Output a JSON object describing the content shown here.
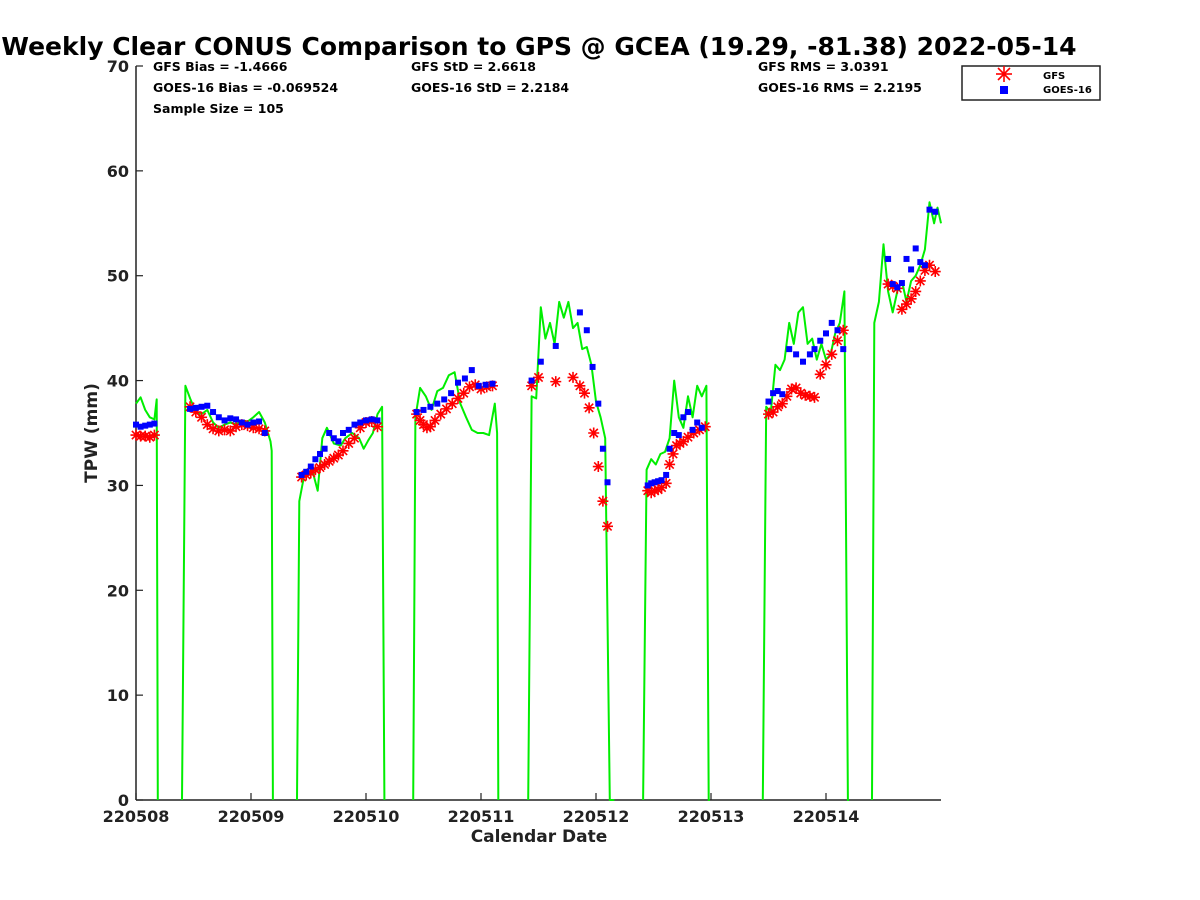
{
  "chart_data": {
    "type": "scatter",
    "title": "Weekly Clear CONUS Comparison to GPS @ GCEA (19.29, -81.38) 2022-05-14",
    "xlabel": "Calendar Date",
    "ylabel": "TPW (mm)",
    "xlim": [
      0,
      7
    ],
    "ylim": [
      0,
      70
    ],
    "yticks": [
      0,
      10,
      20,
      30,
      40,
      50,
      60,
      70
    ],
    "xticks": [
      {
        "x": 0,
        "label": "220508"
      },
      {
        "x": 1,
        "label": "220509"
      },
      {
        "x": 2,
        "label": "220510"
      },
      {
        "x": 3,
        "label": "220511"
      },
      {
        "x": 4,
        "label": "220512"
      },
      {
        "x": 5,
        "label": "220513"
      },
      {
        "x": 6,
        "label": "220514"
      }
    ],
    "grid": false,
    "legend_position": "top-right",
    "stats": {
      "gfs_bias": "GFS Bias = -1.4666",
      "goes_bias": "GOES-16 Bias = -0.069524",
      "sample_size": "Sample Size = 105",
      "gfs_std": "GFS StD = 2.6618",
      "goes_std": "GOES-16 StD = 2.2184",
      "gfs_rms": "GFS RMS = 3.0391",
      "goes_rms": "GOES-16 RMS = 2.2195"
    },
    "series": [
      {
        "name": "GFS",
        "marker": "asterisk",
        "color": "#ff0000",
        "x": [
          0.0,
          0.04,
          0.08,
          0.12,
          0.16,
          0.47,
          0.52,
          0.57,
          0.62,
          0.67,
          0.72,
          0.77,
          0.82,
          0.87,
          0.92,
          0.97,
          1.02,
          1.07,
          1.12,
          1.44,
          1.48,
          1.52,
          1.56,
          1.6,
          1.64,
          1.68,
          1.72,
          1.76,
          1.8,
          1.85,
          1.9,
          1.95,
          2.0,
          2.05,
          2.1,
          2.44,
          2.47,
          2.5,
          2.53,
          2.56,
          2.6,
          2.65,
          2.7,
          2.75,
          2.8,
          2.85,
          2.9,
          2.95,
          3.0,
          3.05,
          3.1,
          3.44,
          3.5,
          3.65,
          3.8,
          3.86,
          3.9,
          3.94,
          3.98,
          4.02,
          4.06,
          4.1,
          4.45,
          4.48,
          4.51,
          4.54,
          4.57,
          4.61,
          4.64,
          4.67,
          4.7,
          4.73,
          4.76,
          4.8,
          4.85,
          4.9,
          4.95,
          5.5,
          5.54,
          5.58,
          5.62,
          5.66,
          5.7,
          5.74,
          5.78,
          5.82,
          5.86,
          5.9,
          5.95,
          6.0,
          6.05,
          6.1,
          6.15,
          6.54,
          6.58,
          6.62,
          6.66,
          6.7,
          6.74,
          6.78,
          6.82,
          6.86,
          6.9,
          6.95
        ],
        "y": [
          34.8,
          34.7,
          34.7,
          34.6,
          34.8,
          37.5,
          37.0,
          36.5,
          35.8,
          35.4,
          35.2,
          35.3,
          35.2,
          35.6,
          35.8,
          35.7,
          35.5,
          35.4,
          35.2,
          30.8,
          31.0,
          31.2,
          31.5,
          31.7,
          32.0,
          32.3,
          32.6,
          32.9,
          33.3,
          34.0,
          34.5,
          35.5,
          36.0,
          36.1,
          35.6,
          36.8,
          36.2,
          35.8,
          35.5,
          35.6,
          36.2,
          36.8,
          37.3,
          37.8,
          38.3,
          38.8,
          39.4,
          39.6,
          39.2,
          39.4,
          39.5,
          39.5,
          40.3,
          39.9,
          40.3,
          39.5,
          38.8,
          37.4,
          35.0,
          31.8,
          28.5,
          26.1,
          29.5,
          29.3,
          29.5,
          29.6,
          29.8,
          30.2,
          32.0,
          33.0,
          33.8,
          34.0,
          34.2,
          34.6,
          35.0,
          35.3,
          35.6,
          36.8,
          37.0,
          37.5,
          37.8,
          38.5,
          39.2,
          39.3,
          38.8,
          38.6,
          38.5,
          38.4,
          40.6,
          41.5,
          42.5,
          43.8,
          44.8,
          49.2,
          49.0,
          48.8,
          46.8,
          47.3,
          47.8,
          48.5,
          49.5,
          50.5,
          51.0,
          50.4
        ]
      },
      {
        "name": "GOES-16",
        "marker": "square",
        "color": "#0000ff",
        "x": [
          0.0,
          0.04,
          0.08,
          0.12,
          0.16,
          0.47,
          0.52,
          0.57,
          0.62,
          0.67,
          0.72,
          0.77,
          0.82,
          0.87,
          0.92,
          0.97,
          1.02,
          1.07,
          1.12,
          1.44,
          1.48,
          1.52,
          1.56,
          1.6,
          1.64,
          1.68,
          1.72,
          1.76,
          1.8,
          1.85,
          1.9,
          1.95,
          2.0,
          2.05,
          2.1,
          2.44,
          2.5,
          2.56,
          2.62,
          2.68,
          2.74,
          2.8,
          2.86,
          2.92,
          2.98,
          3.04,
          3.1,
          3.44,
          3.52,
          3.65,
          3.86,
          3.92,
          3.97,
          4.02,
          4.06,
          4.1,
          4.45,
          4.48,
          4.51,
          4.54,
          4.57,
          4.61,
          4.64,
          4.68,
          4.72,
          4.76,
          4.8,
          4.84,
          4.88,
          4.92,
          5.5,
          5.54,
          5.58,
          5.62,
          5.68,
          5.74,
          5.8,
          5.86,
          5.9,
          5.95,
          6.0,
          6.05,
          6.1,
          6.15,
          6.54,
          6.58,
          6.62,
          6.66,
          6.7,
          6.74,
          6.78,
          6.82,
          6.86,
          6.9,
          6.95
        ],
        "y": [
          35.8,
          35.6,
          35.7,
          35.8,
          35.9,
          37.3,
          37.4,
          37.5,
          37.6,
          37.0,
          36.5,
          36.2,
          36.4,
          36.3,
          36.0,
          35.8,
          36.0,
          36.1,
          35.0,
          31.0,
          31.3,
          31.8,
          32.5,
          33.0,
          33.5,
          35.0,
          34.5,
          34.2,
          35.0,
          35.3,
          35.8,
          36.0,
          36.2,
          36.3,
          36.2,
          37.0,
          37.2,
          37.5,
          37.8,
          38.2,
          38.8,
          39.8,
          40.2,
          41.0,
          39.5,
          39.6,
          39.7,
          40.0,
          41.8,
          43.3,
          46.5,
          44.8,
          41.3,
          37.8,
          33.5,
          30.3,
          30.0,
          30.2,
          30.3,
          30.4,
          30.5,
          31.0,
          33.5,
          35.0,
          34.8,
          36.5,
          37.0,
          35.3,
          36.0,
          35.5,
          38.0,
          38.8,
          39.0,
          38.7,
          43.0,
          42.5,
          41.8,
          42.5,
          43.0,
          43.8,
          44.5,
          45.5,
          44.8,
          43.0,
          51.6,
          49.2,
          48.9,
          49.3,
          51.6,
          50.6,
          52.6,
          51.3,
          51.0,
          56.3,
          56.1
        ]
      },
      {
        "name": "GPS",
        "style": "line",
        "color": "#00ee00",
        "segments": [
          {
            "x": [
              0.0,
              0.04,
              0.08,
              0.12,
              0.16,
              0.17,
              0.18,
              0.19
            ],
            "y": [
              37.8,
              38.4,
              37.2,
              36.5,
              36.3,
              37.3,
              38.2,
              0
            ]
          },
          {
            "x": [
              0.4,
              0.43,
              0.47,
              0.52,
              0.57,
              0.62,
              0.67,
              0.72,
              0.77,
              0.82,
              0.87,
              0.92,
              0.97,
              1.02,
              1.07,
              1.12,
              1.17,
              1.18,
              1.19
            ],
            "y": [
              0,
              39.5,
              38.3,
              37.0,
              36.8,
              37.2,
              36.0,
              35.5,
              35.8,
              36.0,
              35.8,
              36.2,
              36.1,
              36.5,
              37.0,
              36.0,
              34.2,
              33.3,
              0
            ]
          },
          {
            "x": [
              1.4,
              1.42,
              1.46,
              1.52,
              1.58,
              1.62,
              1.66,
              1.72,
              1.78,
              1.82,
              1.88,
              1.94,
              1.98,
              2.02,
              2.06,
              2.1,
              2.14,
              2.16
            ],
            "y": [
              0,
              28.5,
              30.8,
              32.0,
              29.5,
              34.5,
              35.5,
              34.0,
              33.8,
              34.5,
              35.0,
              34.5,
              33.5,
              34.3,
              35.0,
              36.8,
              37.5,
              0
            ]
          },
          {
            "x": [
              2.41,
              2.43,
              2.47,
              2.52,
              2.57,
              2.62,
              2.67,
              2.72,
              2.77,
              2.82,
              2.87,
              2.92,
              2.97,
              3.02,
              3.07,
              3.12,
              3.14,
              3.15
            ],
            "y": [
              0,
              36.5,
              39.3,
              38.5,
              37.2,
              39.0,
              39.3,
              40.5,
              40.8,
              37.8,
              36.5,
              35.3,
              35.0,
              35.0,
              34.8,
              37.8,
              35.0,
              0
            ]
          },
          {
            "x": [
              3.41,
              3.44,
              3.48,
              3.52,
              3.56,
              3.6,
              3.64,
              3.68,
              3.72,
              3.76,
              3.8,
              3.84,
              3.88,
              3.92,
              3.96,
              4.0,
              4.04,
              4.08,
              4.12,
              4.15,
              4.16
            ],
            "y": [
              0,
              38.5,
              38.3,
              47.0,
              44.0,
              45.5,
              43.5,
              47.5,
              46.0,
              47.5,
              45.0,
              45.5,
              43.0,
              43.2,
              41.5,
              38.0,
              36.5,
              34.5,
              0,
              0,
              0
            ]
          },
          {
            "x": [
              4.41,
              4.44,
              4.48,
              4.52,
              4.56,
              4.6,
              4.64,
              4.68,
              4.72,
              4.76,
              4.8,
              4.84,
              4.88,
              4.92,
              4.96,
              4.98,
              4.99
            ],
            "y": [
              0,
              31.5,
              32.5,
              32.0,
              33.0,
              33.2,
              34.5,
              40.0,
              36.5,
              35.5,
              38.5,
              36.5,
              39.5,
              38.5,
              39.5,
              0,
              0
            ]
          },
          {
            "x": [
              5.45,
              5.48,
              5.52,
              5.56,
              5.6,
              5.64,
              5.68,
              5.72,
              5.76,
              5.8,
              5.84,
              5.88,
              5.92,
              5.96,
              6.0,
              6.04,
              6.08,
              6.12,
              6.16,
              6.19,
              6.2
            ],
            "y": [
              0,
              37.5,
              37.0,
              41.5,
              41.0,
              42.0,
              45.5,
              43.5,
              46.5,
              47.0,
              43.5,
              44.0,
              42.0,
              43.5,
              42.0,
              42.5,
              44.5,
              45.5,
              48.5,
              0,
              0
            ]
          },
          {
            "x": [
              6.4,
              6.42,
              6.46,
              6.5,
              6.54,
              6.58,
              6.62,
              6.66,
              6.7,
              6.74,
              6.78,
              6.82,
              6.86,
              6.9,
              6.94,
              6.97,
              7.0
            ],
            "y": [
              0,
              45.5,
              47.5,
              53.0,
              48.5,
              46.5,
              48.5,
              49.5,
              47.5,
              49.5,
              50.0,
              51.0,
              52.5,
              57.0,
              55.0,
              56.5,
              55.0
            ]
          }
        ]
      }
    ]
  }
}
